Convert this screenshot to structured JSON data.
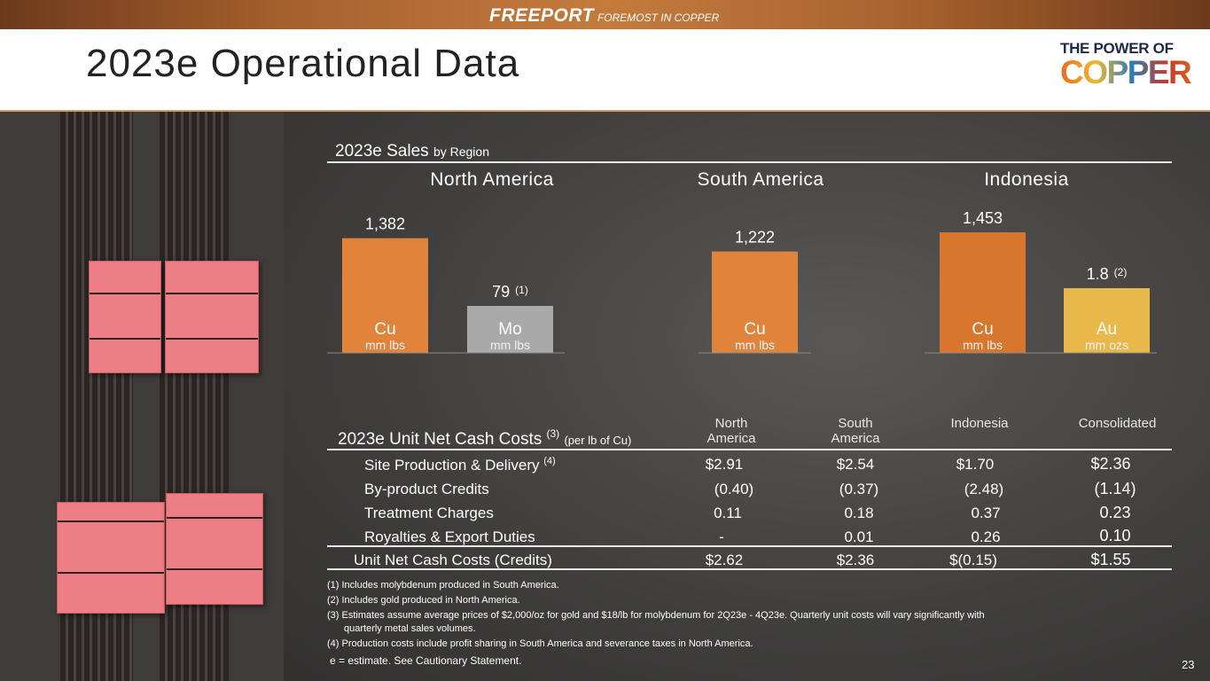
{
  "header": {
    "brand": "FREEPORT",
    "tagline": "FOREMOST IN COPPER"
  },
  "page": {
    "title": "2023e Operational Data",
    "page_number": "23"
  },
  "logo": {
    "top": "THE POWER OF",
    "bottom": "COPPER"
  },
  "sales": {
    "title": "2023e Sales",
    "subtitle": "by Region",
    "regions": [
      "North America",
      "South America",
      "Indonesia"
    ]
  },
  "chart_data": {
    "type": "bar",
    "title": "2023e Sales by Region",
    "groups": [
      {
        "region": "North America",
        "bars": [
          {
            "metal": "Cu",
            "unit": "mm lbs",
            "value": 1382,
            "label": "1,382",
            "note": "",
            "color": "#e0843c"
          },
          {
            "metal": "Mo",
            "unit": "mm lbs",
            "value": 79,
            "label": "79",
            "note": "(1)",
            "color": "#a9a9a9"
          }
        ]
      },
      {
        "region": "South America",
        "bars": [
          {
            "metal": "Cu",
            "unit": "mm lbs",
            "value": 1222,
            "label": "1,222",
            "note": "",
            "color": "#e0843c"
          }
        ]
      },
      {
        "region": "Indonesia",
        "bars": [
          {
            "metal": "Cu",
            "unit": "mm lbs",
            "value": 1453,
            "label": "1,453",
            "note": "",
            "color": "#d8762e"
          },
          {
            "metal": "Au",
            "unit": "mm ozs",
            "value": 1.8,
            "label": "1.8",
            "note": "(2)",
            "color": "#e8b84a"
          }
        ]
      }
    ]
  },
  "costs": {
    "title": "2023e Unit Net Cash Costs",
    "title_note": "(3)",
    "title_sub": "(per lb of Cu)",
    "columns": [
      {
        "line1": "North",
        "line2": "America"
      },
      {
        "line1": "South",
        "line2": "America"
      },
      {
        "line1": "",
        "line2": "Indonesia"
      },
      {
        "line1": "",
        "line2": "Consolidated"
      }
    ],
    "rows": [
      {
        "label": "Site Production & Delivery",
        "note": "(4)",
        "values": [
          "$2.91",
          "$2.54",
          "$1.70",
          "$2.36"
        ]
      },
      {
        "label": "By-product Credits",
        "note": "",
        "values": [
          "(0.40)",
          "(0.37)",
          "(2.48)",
          "(1.14)"
        ]
      },
      {
        "label": "Treatment Charges",
        "note": "",
        "values": [
          "0.11",
          "0.18",
          "0.37",
          "0.23"
        ]
      },
      {
        "label": "Royalties & Export Duties",
        "note": "",
        "values": [
          "-",
          "0.01",
          "0.26",
          "0.10"
        ]
      }
    ],
    "total": {
      "label": "Unit Net Cash Costs (Credits)",
      "values": [
        "$2.62",
        "$2.36",
        "$(0.15)",
        "$1.55"
      ]
    }
  },
  "footnotes": [
    "(1) Includes molybdenum produced in South America.",
    "(2) Includes gold produced in North America.",
    "(3) Estimates assume average prices of $2,000/oz for gold and $18/lb for molybdenum for 2Q23e - 4Q23e. Quarterly unit costs will vary significantly with",
    "quarterly metal sales volumes.",
    "(4) Production costs include profit sharing in South America and severance taxes in North America."
  ],
  "estimate_note": "e = estimate. See Cautionary Statement."
}
